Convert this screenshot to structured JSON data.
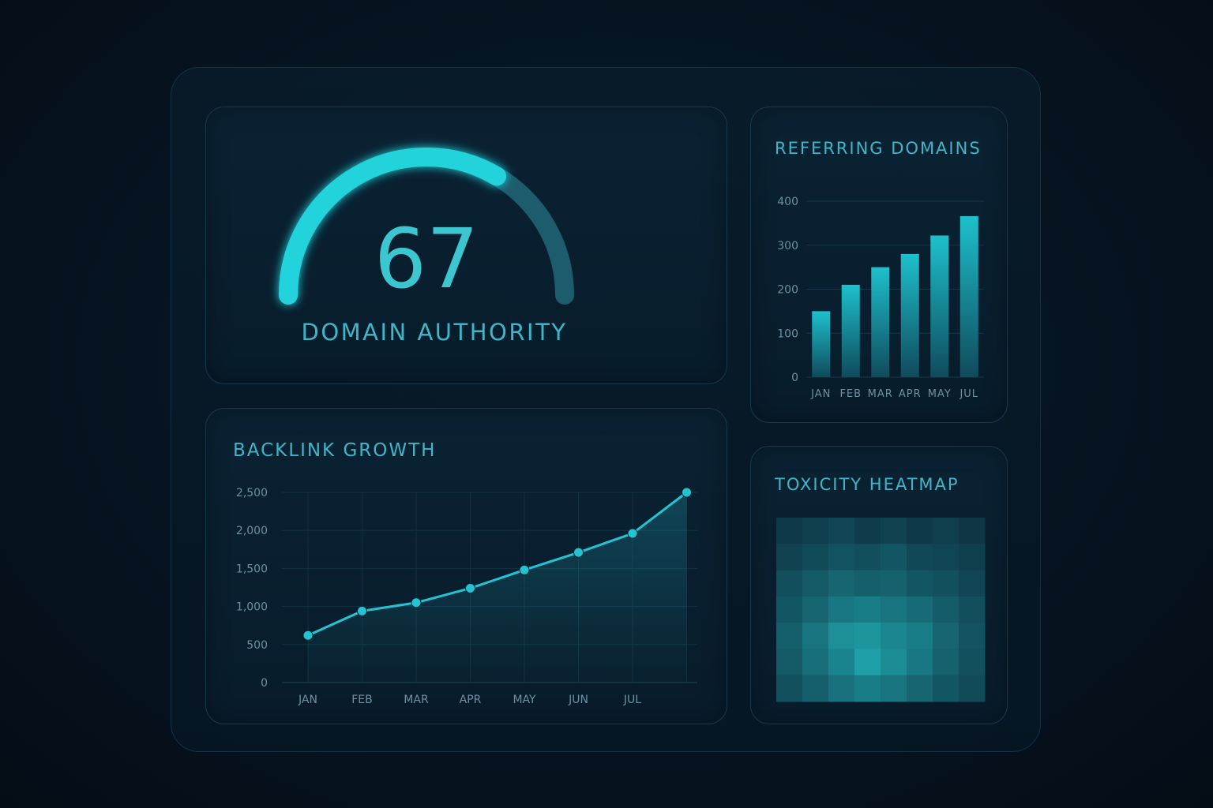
{
  "dashboard": {
    "authority": {
      "value": "67",
      "title": "DOMAIN AUTHORITY",
      "score_fraction": 0.67
    },
    "referring": {
      "title": "REFERRING DOMAINS"
    },
    "backlinks": {
      "title": "BACKLINK GROWTH"
    },
    "toxicity": {
      "title": "TOXICITY HEATMAP"
    }
  },
  "colors": {
    "accent": "#22d3dc",
    "accent_dim": "#1a6f80",
    "title": "#3fb6c8",
    "tick": "#6f8fa3",
    "card_bg": "#0a2233"
  },
  "chart_data": [
    {
      "type": "bar",
      "title": "REFERRING DOMAINS",
      "categories": [
        "JAN",
        "FEB",
        "MAR",
        "APR",
        "MAY",
        "JUL"
      ],
      "values": [
        150,
        210,
        250,
        280,
        322,
        366
      ],
      "yticks": [
        "0",
        "100",
        "200",
        "300",
        "400"
      ],
      "ylim": [
        0,
        400
      ],
      "grid": true
    },
    {
      "type": "line",
      "title": "BACKLINK GROWTH",
      "x": [
        "JAN",
        "FEB",
        "MAR",
        "APR",
        "MAY",
        "JUN",
        "JUL",
        ""
      ],
      "values": [
        620,
        940,
        1050,
        1240,
        1480,
        1710,
        1960,
        2500
      ],
      "yticks": [
        "0",
        "500",
        "1,000",
        "1,500",
        "2,000",
        "2,500"
      ],
      "ylim": [
        0,
        2500
      ],
      "grid": true
    },
    {
      "type": "heatmap",
      "title": "TOXICITY HEATMAP",
      "rows": 7,
      "cols": 8,
      "values": [
        [
          0.1,
          0.14,
          0.18,
          0.12,
          0.16,
          0.1,
          0.14,
          0.08
        ],
        [
          0.16,
          0.22,
          0.28,
          0.24,
          0.3,
          0.2,
          0.18,
          0.14
        ],
        [
          0.24,
          0.32,
          0.4,
          0.36,
          0.38,
          0.3,
          0.26,
          0.18
        ],
        [
          0.3,
          0.4,
          0.52,
          0.56,
          0.5,
          0.44,
          0.34,
          0.24
        ],
        [
          0.36,
          0.5,
          0.68,
          0.72,
          0.62,
          0.56,
          0.4,
          0.28
        ],
        [
          0.32,
          0.46,
          0.6,
          0.8,
          0.66,
          0.52,
          0.38,
          0.26
        ],
        [
          0.26,
          0.36,
          0.48,
          0.56,
          0.5,
          0.4,
          0.3,
          0.22
        ]
      ]
    }
  ]
}
